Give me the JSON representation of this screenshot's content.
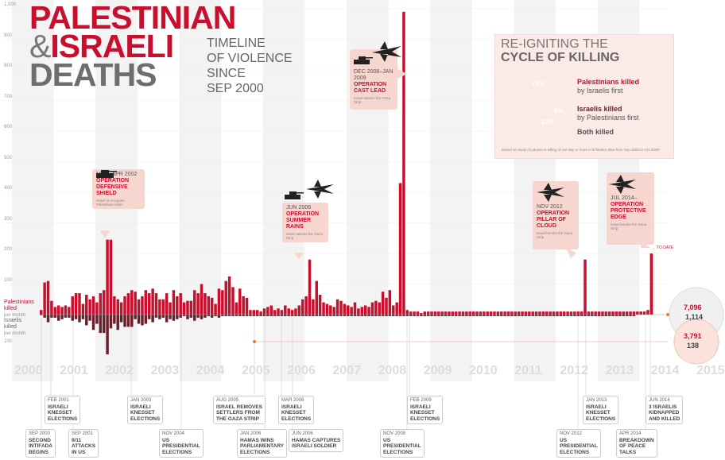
{
  "title": {
    "line1": "PALESTINIAN",
    "amp": "&",
    "line2": "ISRAELI",
    "line3": "DEATHS"
  },
  "subtitle": [
    "TIMELINE",
    "OF VIOLENCE",
    "SINCE",
    "SEP 2000"
  ],
  "axis_labels": {
    "palestinians": "Palestinians",
    "killed": "killed",
    "per_month": "per month",
    "israelis": "Israelis",
    "killed2": "killed",
    "per_month2": "per month"
  },
  "y_ticks": [
    "1,000",
    "900",
    "800",
    "700",
    "600",
    "500",
    "400",
    "300",
    "200",
    "100",
    "100"
  ],
  "years": [
    "2000",
    "2001",
    "2002",
    "2003",
    "2004",
    "2005",
    "2006",
    "2007",
    "2008",
    "2009",
    "2010",
    "2011",
    "2012",
    "2013",
    "2014",
    "2015"
  ],
  "callouts": [
    {
      "date": "MAR–APR 2002",
      "name": [
        "OPERATION",
        "DEFENSIVE",
        "SHIELD"
      ],
      "text": "Israel re-occupies Palestinian cities"
    },
    {
      "date": "JUN 2006",
      "name": [
        "OPERATION",
        "SUMMER",
        "RAINS"
      ],
      "text": "Israel attacks the Gaza Strip"
    },
    {
      "date": "DEC 2008–JAN 2009",
      "name": [
        "OPERATION",
        "CAST LEAD"
      ],
      "text": "Israel attacks the Gaza Strip"
    },
    {
      "date": "NOV 2012",
      "name": [
        "OPERATION",
        "PILLAR OF",
        "CLOUD"
      ],
      "text": "Israel bombs the Gaza Strip"
    },
    {
      "date": "JUL 2014–",
      "name": [
        "OPERATION",
        "PROTECTIVE",
        "EDGE"
      ],
      "text": "Israel bombs the Gaza Strip"
    }
  ],
  "to_date": "TO DATE",
  "totals": {
    "pal_label": "Palestinians killed",
    "isr_label": "Israelis killed",
    "pal_2014": "7,096",
    "isr_2014": "1,114",
    "pal_total": "3,791",
    "isr_total": "138"
  },
  "events": [
    {
      "date": "SEP 2000",
      "title": [
        "SECOND",
        "INTIFADA",
        "BEGINS"
      ]
    },
    {
      "date": "FEB 2001",
      "title": [
        "ISRAELI",
        "KNESSET",
        "ELECTIONS"
      ]
    },
    {
      "date": "SEP 2001",
      "title": [
        "9/11",
        "ATTACKS",
        "IN US"
      ]
    },
    {
      "date": "JAN 2003",
      "title": [
        "ISRAELI",
        "KNESSET",
        "ELECTIONS"
      ]
    },
    {
      "date": "NOV 2004",
      "title": [
        "US",
        "PRESIDENTIAL",
        "ELECTIONS"
      ]
    },
    {
      "date": "AUG 2005",
      "title": [
        "ISRAEL REMOVES",
        "SETTLERS FROM",
        "THE GAZA STRIP"
      ]
    },
    {
      "date": "JAN 2006",
      "title": [
        "HAMAS WINS",
        "PARLIAMENTARY",
        "ELECTIONS"
      ]
    },
    {
      "date": "MAR 2006",
      "title": [
        "ISRAELI",
        "KNESSET",
        "ELECTIONS"
      ]
    },
    {
      "date": "JUN 2006",
      "title": [
        "HAMAS CAPTURES",
        "ISRAELI SOLDIER"
      ]
    },
    {
      "date": "NOV 2008",
      "title": [
        "US",
        "PRESIDENTIAL",
        "ELECTIONS"
      ]
    },
    {
      "date": "FEB 2009",
      "title": [
        "ISRAELI",
        "KNESSET",
        "ELECTIONS"
      ]
    },
    {
      "date": "NOV 2012",
      "title": [
        "US",
        "PRESIDENTIAL",
        "ELECTIONS"
      ]
    },
    {
      "date": "JAN 2013",
      "title": [
        "ISRAELI",
        "KNESSET",
        "ELECTIONS"
      ]
    },
    {
      "date": "APR 2014",
      "title": [
        "BREAKDOWN",
        "OF PEACE",
        "TALKS"
      ]
    },
    {
      "date": "JUN 2014",
      "title": [
        "3 ISRAELIS",
        "KIDNAPPED",
        "AND KILLED"
      ]
    }
  ],
  "panel": {
    "heading1": "RE-IGNITING THE",
    "heading2": "CYCLE OF KILLING",
    "pct_pal": "79%",
    "pct_isr": "8%",
    "pct_both": "13%",
    "lab_pal_b": "Palestinians killed",
    "lab_pal": "by Israelis first",
    "lab_isr_b": "Israelis killed",
    "lab_isr": "by Palestinians first",
    "lab_both_b": "Both killed",
    "note": "Based on study of pauses in killing of one day or more in B'Tselem data from Sep 2000 to Oct 2008*"
  },
  "colors": {
    "pal": "#c8102e",
    "isr": "#6b1f2a",
    "grey": "#e4e4e4"
  },
  "chart_data": [
    {
      "type": "bar",
      "title": "Palestinians killed / Israelis killed per month",
      "x_start": "2000-09",
      "x_end": "2014-08",
      "ylim": [
        0,
        1000
      ],
      "series": [
        {
          "name": "Palestinians killed per month",
          "values": [
            15,
            105,
            110,
            45,
            25,
            30,
            25,
            30,
            25,
            60,
            70,
            70,
            35,
            65,
            50,
            60,
            40,
            70,
            80,
            245,
            245,
            60,
            50,
            40,
            60,
            70,
            80,
            75,
            50,
            60,
            80,
            70,
            85,
            70,
            50,
            50,
            70,
            40,
            80,
            60,
            70,
            40,
            45,
            45,
            80,
            70,
            100,
            70,
            60,
            55,
            35,
            85,
            80,
            110,
            125,
            90,
            40,
            85,
            60,
            55,
            15,
            15,
            15,
            10,
            20,
            25,
            30,
            15,
            20,
            15,
            30,
            20,
            15,
            20,
            30,
            50,
            60,
            180,
            50,
            110,
            65,
            40,
            35,
            30,
            25,
            50,
            45,
            35,
            30,
            25,
            40,
            20,
            25,
            30,
            25,
            40,
            45,
            40,
            75,
            55,
            80,
            30,
            40,
            430,
            990,
            15,
            10,
            10,
            10,
            5,
            10,
            10,
            10,
            10,
            10,
            10,
            10,
            10,
            10,
            10,
            10,
            10,
            10,
            10,
            10,
            10,
            10,
            10,
            10,
            10,
            10,
            10,
            10,
            10,
            10,
            10,
            10,
            10,
            10,
            10,
            10,
            10,
            10,
            10,
            10,
            10,
            10,
            10,
            10,
            10,
            10,
            10,
            10,
            10,
            10,
            10,
            180,
            10,
            10,
            10,
            10,
            10,
            10,
            10,
            10,
            10,
            10,
            10,
            10,
            10,
            10,
            10,
            10,
            10,
            15,
            200
          ]
        },
        {
          "name": "Israelis killed per month",
          "values": [
            2,
            10,
            25,
            10,
            10,
            20,
            15,
            10,
            10,
            20,
            15,
            25,
            15,
            35,
            20,
            50,
            30,
            60,
            60,
            130,
            45,
            30,
            50,
            25,
            40,
            40,
            40,
            15,
            30,
            35,
            30,
            15,
            25,
            10,
            15,
            10,
            25,
            15,
            20,
            15,
            10,
            5,
            15,
            10,
            20,
            10,
            15,
            10,
            5,
            10,
            5,
            10,
            5,
            5,
            5,
            5,
            5,
            5,
            5,
            5,
            5,
            5,
            5,
            5,
            5,
            5,
            5,
            5,
            5,
            5,
            5,
            5,
            5,
            5,
            5,
            5,
            5,
            5,
            5,
            5,
            5,
            5,
            5,
            5,
            5,
            5,
            5,
            5,
            5,
            5,
            5,
            5,
            5,
            5,
            5,
            5,
            5,
            5,
            5,
            5,
            5,
            5,
            5,
            5,
            5,
            5,
            5,
            5,
            5,
            5,
            5,
            5,
            5,
            5,
            5,
            5,
            5,
            5,
            5,
            5,
            5,
            5,
            5,
            5,
            5,
            5,
            5,
            5,
            5,
            5,
            5,
            5,
            5,
            5,
            5,
            5,
            5,
            5,
            5,
            5,
            5,
            5,
            5,
            5,
            5,
            5,
            5,
            5,
            5,
            5,
            5,
            5,
            5,
            5,
            5,
            5,
            5,
            5,
            5,
            5,
            5,
            5,
            5,
            5,
            5,
            5,
            5,
            5,
            5,
            5,
            5
          ]
        }
      ]
    },
    {
      "type": "pie",
      "title": "CYCLE OF KILLING",
      "categories": [
        "Palestinians killed by Israelis first",
        "Israelis killed by Palestinians first",
        "Both killed"
      ],
      "values": [
        79,
        8,
        13
      ]
    }
  ]
}
